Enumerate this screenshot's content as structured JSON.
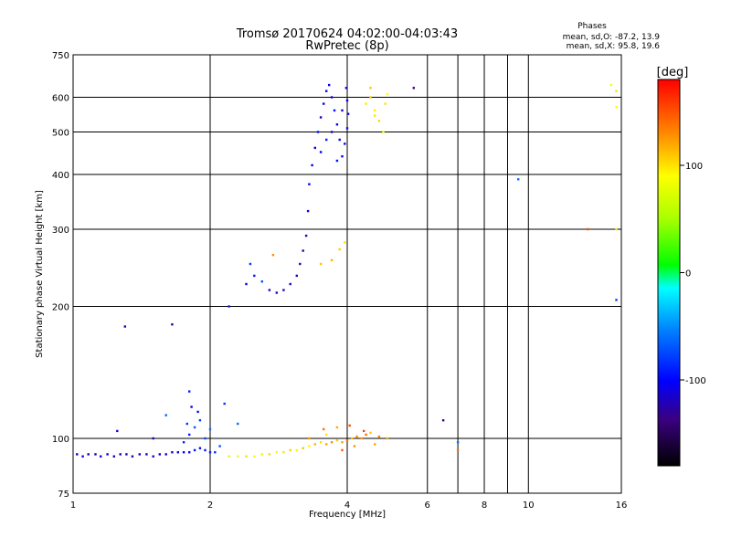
{
  "chart_data": {
    "type": "scatter",
    "title": "Tromsø 20170624 04:02:00-04:03:43",
    "subtitle": "RwPretec (8p)",
    "xlabel": "Frequency [MHz]",
    "ylabel": "Stationary phase Virtual Height [km]",
    "x_scale": "log",
    "y_scale": "log",
    "xlim": [
      1,
      16
    ],
    "ylim": [
      75,
      750
    ],
    "x_ticks": [
      1,
      2,
      4,
      6,
      8,
      10,
      16
    ],
    "x_tick_labels": [
      "1",
      "2",
      "4",
      "6",
      "8",
      "10",
      "16"
    ],
    "x_minor_ticks": [
      7,
      9
    ],
    "y_ticks": [
      75,
      100,
      200,
      300,
      400,
      500,
      600,
      750
    ],
    "y_tick_labels": [
      "75",
      "100",
      "200",
      "300",
      "400",
      "500",
      "600",
      "750"
    ],
    "grid": true,
    "legend": {
      "title": "Phases",
      "lines": [
        "mean, sd,O: -87.2, 13.9",
        "mean, sd,X:  95.8, 19.6"
      ],
      "placement": "top-right"
    },
    "colorbar": {
      "label": "[deg]",
      "range": [
        -180,
        180
      ],
      "ticks": [
        100,
        0,
        -100
      ],
      "tick_labels": [
        "100",
        "0",
        "-100"
      ]
    },
    "series": [
      {
        "points": [
          [
            1.02,
            92,
            -120
          ],
          [
            1.05,
            91,
            -110
          ],
          [
            1.08,
            92,
            -115
          ],
          [
            1.12,
            92,
            -120
          ],
          [
            1.15,
            91,
            -112
          ],
          [
            1.19,
            92,
            -118
          ],
          [
            1.23,
            91,
            -121
          ],
          [
            1.27,
            92,
            -114
          ],
          [
            1.31,
            92,
            -119
          ],
          [
            1.35,
            91,
            -123
          ],
          [
            1.4,
            92,
            -116
          ],
          [
            1.45,
            92,
            -112
          ],
          [
            1.5,
            91,
            -120
          ],
          [
            1.55,
            92,
            -117
          ],
          [
            1.6,
            92,
            -113
          ],
          [
            1.65,
            93,
            -119
          ],
          [
            1.7,
            93,
            -110
          ],
          [
            1.75,
            93,
            -106
          ],
          [
            1.8,
            93,
            -100
          ],
          [
            1.85,
            94,
            -95
          ],
          [
            1.9,
            95,
            -100
          ],
          [
            1.95,
            94,
            -92
          ],
          [
            2.0,
            93,
            -88
          ],
          [
            2.05,
            93,
            -85
          ],
          [
            2.2,
            91,
            80
          ],
          [
            2.3,
            91,
            95
          ],
          [
            2.4,
            91,
            110
          ],
          [
            2.5,
            91,
            98
          ],
          [
            2.6,
            92,
            104
          ],
          [
            2.7,
            92,
            112
          ],
          [
            2.8,
            93,
            96
          ],
          [
            2.9,
            93,
            108
          ],
          [
            3.0,
            94,
            116
          ],
          [
            3.1,
            94,
            92
          ],
          [
            3.2,
            95,
            120
          ],
          [
            3.3,
            96,
            104
          ],
          [
            3.4,
            97,
            126
          ],
          [
            3.5,
            98,
            112
          ],
          [
            3.6,
            97,
            130
          ],
          [
            3.7,
            98,
            140
          ],
          [
            3.8,
            99,
            118
          ],
          [
            3.9,
            98,
            132
          ],
          [
            4.0,
            99,
            150
          ],
          [
            4.1,
            100,
            124
          ],
          [
            4.2,
            101,
            142
          ],
          [
            4.3,
            100,
            135
          ],
          [
            4.4,
            102,
            150
          ],
          [
            4.5,
            103,
            120
          ],
          [
            4.7,
            101,
            145
          ],
          [
            4.9,
            100,
            128
          ],
          [
            3.55,
            105,
            150
          ],
          [
            3.8,
            106,
            130
          ],
          [
            4.05,
            107,
            158
          ],
          [
            4.35,
            104,
            162
          ],
          [
            3.3,
            100,
            138
          ],
          [
            3.6,
            102,
            110
          ],
          [
            3.9,
            94,
            155
          ],
          [
            4.15,
            96,
            140
          ],
          [
            4.6,
            97,
            132
          ],
          [
            1.25,
            104,
            -108
          ],
          [
            1.5,
            100,
            -115
          ],
          [
            1.75,
            98,
            -85
          ],
          [
            1.8,
            102,
            -90
          ],
          [
            1.85,
            106,
            -70
          ],
          [
            1.9,
            110,
            -80
          ],
          [
            1.88,
            115,
            -95
          ],
          [
            1.95,
            100,
            -75
          ],
          [
            2.0,
            105,
            -60
          ],
          [
            1.78,
            108,
            -80
          ],
          [
            1.82,
            118,
            -100
          ],
          [
            2.1,
            96,
            -70
          ],
          [
            1.6,
            113,
            -65
          ],
          [
            2.15,
            120,
            -80
          ],
          [
            2.3,
            108,
            -60
          ],
          [
            1.3,
            180,
            -120
          ],
          [
            1.65,
            182,
            -125
          ],
          [
            1.8,
            128,
            -90
          ],
          [
            2.2,
            200,
            -90
          ],
          [
            2.4,
            225,
            -110
          ],
          [
            2.5,
            235,
            -90
          ],
          [
            2.6,
            228,
            -70
          ],
          [
            2.7,
            218,
            -120
          ],
          [
            2.8,
            215,
            -125
          ],
          [
            2.9,
            218,
            -125
          ],
          [
            3.0,
            225,
            -125
          ],
          [
            3.1,
            235,
            -125
          ],
          [
            3.15,
            250,
            -120
          ],
          [
            3.2,
            268,
            -125
          ],
          [
            3.25,
            290,
            -120
          ],
          [
            3.28,
            330,
            -110
          ],
          [
            3.3,
            380,
            -100
          ],
          [
            2.45,
            250,
            -80
          ],
          [
            2.75,
            262,
            140
          ],
          [
            3.5,
            250,
            120
          ],
          [
            3.7,
            255,
            128
          ],
          [
            3.85,
            270,
            118
          ],
          [
            3.95,
            280,
            110
          ],
          [
            3.35,
            420,
            -100
          ],
          [
            3.4,
            460,
            -110
          ],
          [
            3.45,
            500,
            -95
          ],
          [
            3.5,
            540,
            -120
          ],
          [
            3.55,
            580,
            -105
          ],
          [
            3.6,
            620,
            -115
          ],
          [
            3.65,
            640,
            -100
          ],
          [
            3.7,
            600,
            -110
          ],
          [
            3.75,
            560,
            -95
          ],
          [
            3.8,
            520,
            -105
          ],
          [
            3.85,
            480,
            -115
          ],
          [
            3.9,
            440,
            -100
          ],
          [
            3.95,
            470,
            -110
          ],
          [
            4.0,
            510,
            -95
          ],
          [
            4.02,
            550,
            -105
          ],
          [
            4.0,
            590,
            -100
          ],
          [
            3.98,
            630,
            -110
          ],
          [
            3.5,
            450,
            -100
          ],
          [
            3.6,
            480,
            -90
          ],
          [
            3.7,
            500,
            -115
          ],
          [
            3.8,
            430,
            -95
          ],
          [
            3.9,
            560,
            -120
          ],
          [
            4.4,
            580,
            110
          ],
          [
            4.5,
            600,
            120
          ],
          [
            4.6,
            560,
            105
          ],
          [
            4.7,
            530,
            115
          ],
          [
            4.8,
            500,
            95
          ],
          [
            4.85,
            580,
            110
          ],
          [
            4.9,
            610,
            100
          ],
          [
            4.5,
            630,
            120
          ],
          [
            4.6,
            545,
            108
          ],
          [
            5.6,
            630,
            -140
          ],
          [
            6.5,
            110,
            -140
          ],
          [
            7.0,
            94,
            150
          ],
          [
            7.0,
            98,
            -60
          ],
          [
            9.5,
            390,
            -60
          ],
          [
            13.5,
            300,
            160
          ],
          [
            15.2,
            640,
            95
          ],
          [
            15.6,
            620,
            110
          ],
          [
            15.6,
            570,
            100
          ],
          [
            15.6,
            300,
            110
          ],
          [
            15.6,
            207,
            -80
          ]
        ]
      }
    ]
  }
}
